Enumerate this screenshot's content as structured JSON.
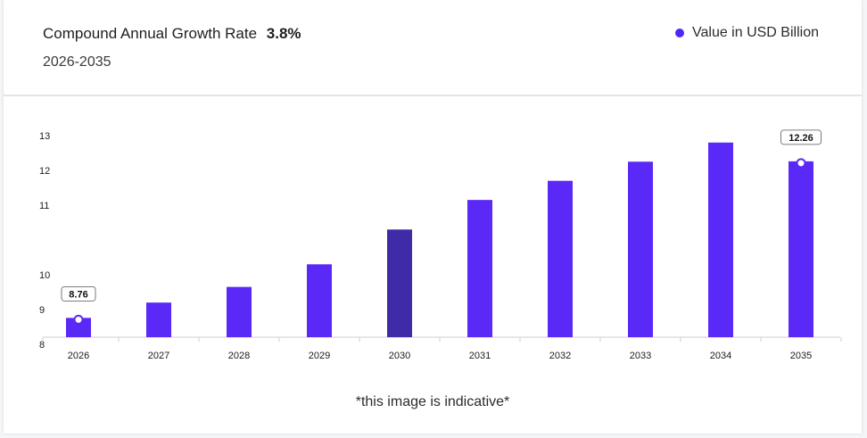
{
  "header": {
    "cagr_label": "Compound Annual Growth Rate",
    "cagr_value": "3.8%",
    "period": "2026-2035"
  },
  "legend": {
    "label": "Value in USD Billion",
    "color": "#5026f7"
  },
  "note": "*this image is indicative*",
  "chart_data": {
    "type": "bar",
    "categories": [
      "2026",
      "2027",
      "2028",
      "2029",
      "2030",
      "2031",
      "2032",
      "2033",
      "2034",
      "2035"
    ],
    "series": [
      {
        "name": "Value in USD Billion",
        "values": [
          8.76,
          9.2,
          9.65,
          10.15,
          10.65,
          11.15,
          11.7,
          12.25,
          12.8,
          12.26
        ]
      }
    ],
    "data_labels": [
      {
        "index": 0,
        "text": "8.76"
      },
      {
        "index": 9,
        "text": "12.26"
      }
    ],
    "y_ticks": [
      8,
      9,
      10,
      11,
      12,
      13
    ],
    "highlight_index": 4,
    "bar_color": "#5a28f7",
    "highlight_color": "#3f2aa8",
    "grid": false,
    "legend_position": "top-right"
  }
}
